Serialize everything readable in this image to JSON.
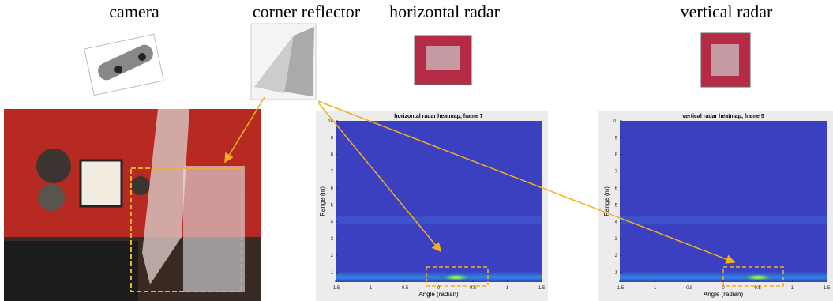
{
  "labels": {
    "camera": "camera",
    "corner_reflector": "corner reflector",
    "horizontal_radar": "horizontal radar",
    "vertical_radar": "vertical radar"
  },
  "heatmaps": [
    {
      "title": "horizontal radar heatmap, frame 7",
      "xlabel": "Angle (radian)",
      "ylabel": "Range (m)",
      "xlim": [
        -1.5,
        1.5
      ],
      "ylim": [
        0.4,
        10
      ],
      "xticks": [
        -1.5,
        -1,
        -0.5,
        0,
        0.5,
        1,
        1.5
      ],
      "yticks": [
        1,
        2,
        3,
        4,
        5,
        6,
        7,
        8,
        9,
        10
      ]
    },
    {
      "title": "vertical radar heatmap, frame 5",
      "xlabel": "Angle (radian)",
      "ylabel": "Range (m)",
      "xlim": [
        -1.5,
        1.5
      ],
      "ylim": [
        0.4,
        10
      ],
      "xticks": [
        -1.5,
        -1,
        -0.5,
        0,
        0.5,
        1,
        1.5
      ],
      "yticks": [
        1,
        2,
        3,
        4,
        5,
        6,
        7,
        8,
        9,
        10
      ]
    }
  ]
}
